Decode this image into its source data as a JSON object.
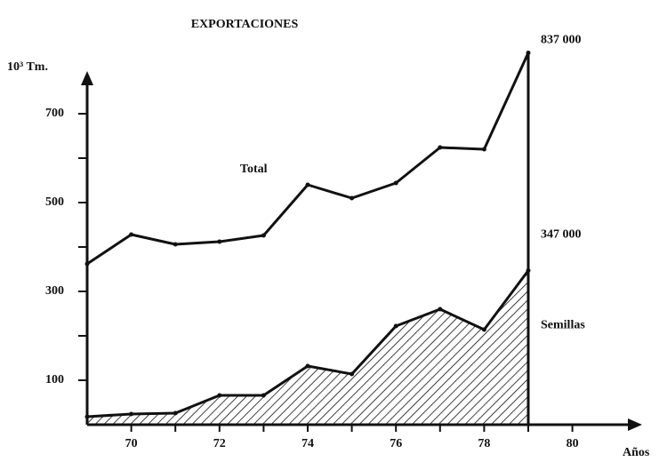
{
  "chart_data": {
    "type": "line",
    "title": "EXPORTACIONES",
    "y_label": "10³ Tm.",
    "x_label": "Años",
    "x": [
      69,
      70,
      71,
      72,
      73,
      74,
      75,
      76,
      77,
      78,
      79
    ],
    "xlim": [
      69,
      81.5
    ],
    "xticks": [
      70,
      72,
      74,
      76,
      78,
      80
    ],
    "xminor_ticks": [
      71,
      73,
      75,
      77,
      79
    ],
    "ylim": [
      0,
      780
    ],
    "yticks": [
      100,
      300,
      500,
      700
    ],
    "yminor_ticks": [
      200,
      400,
      600
    ],
    "series": [
      {
        "name": "Total",
        "color": "#111111",
        "fill": false,
        "end_label": "837 000",
        "values": [
          362,
          428,
          406,
          412,
          426,
          540,
          510,
          544,
          624,
          620,
          837
        ]
      },
      {
        "name": "Semillas",
        "color": "#111111",
        "fill": true,
        "end_label": "347 000",
        "values": [
          18,
          24,
          26,
          66,
          66,
          132,
          114,
          222,
          260,
          214,
          347
        ]
      }
    ]
  }
}
